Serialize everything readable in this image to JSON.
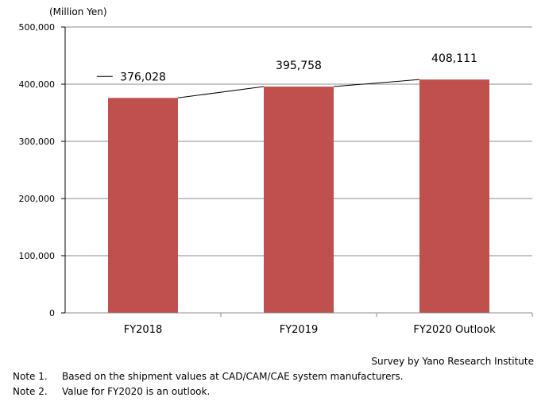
{
  "chart_data": {
    "type": "bar",
    "unit_label": "(Million  Yen)",
    "categories": [
      "FY2018",
      "FY2019",
      "FY2020 Outlook"
    ],
    "values": [
      376028,
      395758,
      408111
    ],
    "value_labels": [
      "376,028",
      "395,758",
      "408,111"
    ],
    "ylim": [
      0,
      500000
    ],
    "yticks": [
      0,
      100000,
      200000,
      300000,
      400000,
      500000
    ],
    "ytick_labels": [
      "0",
      "100,000",
      "200,000",
      "300,000",
      "400,000",
      "500,000"
    ],
    "bar_color": "#c0504d",
    "grid": true,
    "legend": "none"
  },
  "source": "Survey by Yano Research Institute",
  "notes": [
    {
      "num": "Note 1.",
      "text": "Based on the shipment values at CAD/CAM/CAE system manufacturers."
    },
    {
      "num": "Note 2.",
      "text": "Value for FY2020 is an outlook."
    }
  ]
}
